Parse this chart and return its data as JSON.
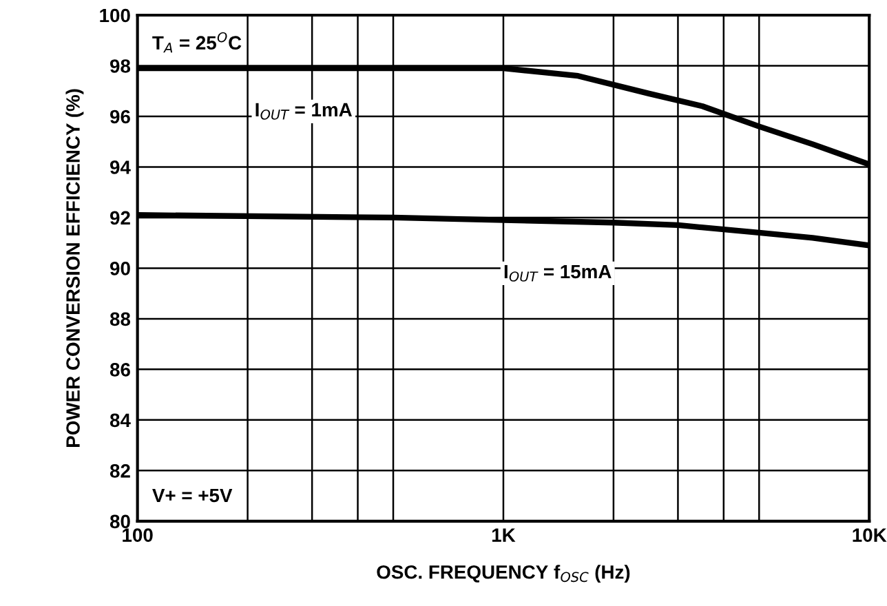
{
  "chart_data": {
    "type": "line",
    "xlabel": "OSC. FREQUENCY f$_{OSC}$ (Hz)",
    "ylabel": "POWER CONVERSION EFFICIENCY (%)",
    "log": "x",
    "grid": true,
    "legend": false,
    "marker": "none",
    "line_style": "solid",
    "xlim": [
      100,
      10000
    ],
    "ylim": [
      80,
      100
    ],
    "xticks": [
      100,
      {
        "value": 200,
        "label": null
      },
      {
        "value": 300,
        "label": null
      },
      {
        "value": 400,
        "label": null
      },
      {
        "value": 500,
        "label": null
      },
      {
        "value": 1000,
        "label": "1K"
      },
      {
        "value": 2000,
        "label": null
      },
      {
        "value": 3000,
        "label": null
      },
      {
        "value": 4000,
        "label": null
      },
      {
        "value": 5000,
        "label": null
      },
      {
        "value": 10000,
        "label": "10K"
      }
    ],
    "yticks": [
      80,
      82,
      84,
      86,
      88,
      90,
      92,
      94,
      96,
      98,
      100
    ],
    "series": [
      {
        "name": "I$_{OUT}$ = 1mA",
        "color": "#000000",
        "x": [
          100,
          500,
          1000,
          1600,
          2500,
          3500,
          5000,
          7000,
          10000
        ],
        "values": [
          97.9,
          97.9,
          97.9,
          97.6,
          96.9,
          96.4,
          95.6,
          94.9,
          94.1
        ]
      },
      {
        "name": "I$_{OUT}$ = 15mA",
        "color": "#000000",
        "x": [
          100,
          500,
          1000,
          2000,
          3000,
          5000,
          7000,
          10000
        ],
        "values": [
          92.1,
          92.0,
          91.9,
          91.8,
          91.7,
          91.4,
          91.2,
          90.9
        ]
      }
    ],
    "annotations": [
      "T$_{A}$ = 25$^{O}$C",
      "V+ = +5V"
    ]
  }
}
